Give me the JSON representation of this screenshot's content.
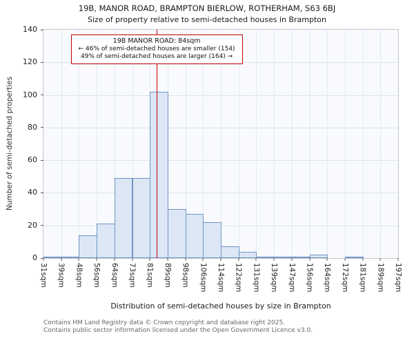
{
  "annotation": {
    "line1": "19B MANOR ROAD: 84sqm",
    "line2": "← 46% of semi-detached houses are smaller (154)",
    "line3": "49% of semi-detached houses are larger (164) →"
  },
  "footer": {
    "line1": "Contains HM Land Registry data © Crown copyright and database right 2025.",
    "line2": "Contains public sector information licensed under the Open Government Licence v3.0."
  },
  "chart_data": {
    "type": "bar",
    "title": "19B, MANOR ROAD, BRAMPTON BIERLOW, ROTHERHAM, S63 6BJ",
    "subtitle": "Size of property relative to semi-detached houses in Brampton",
    "xlabel": "Distribution of semi-detached houses by size in Brampton",
    "ylabel": "Number of semi-detached properties",
    "bin_labels": [
      "31sqm",
      "39sqm",
      "48sqm",
      "56sqm",
      "64sqm",
      "73sqm",
      "81sqm",
      "89sqm",
      "98sqm",
      "106sqm",
      "114sqm",
      "122sqm",
      "131sqm",
      "139sqm",
      "147sqm",
      "156sqm",
      "164sqm",
      "172sqm",
      "181sqm",
      "189sqm",
      "197sqm"
    ],
    "values": [
      1,
      1,
      14,
      21,
      49,
      49,
      102,
      30,
      27,
      22,
      7,
      4,
      1,
      1,
      1,
      2,
      0,
      1,
      0,
      0
    ],
    "ylim": [
      0,
      140
    ],
    "yticks": [
      0,
      20,
      40,
      60,
      80,
      100,
      120,
      140
    ],
    "xrange_sqm": [
      31,
      197
    ],
    "marker_value_sqm": 84,
    "grid": true,
    "legend_position": "none",
    "colors": {
      "bar_fill": "#dce6f5",
      "bar_border": "#6f94c4",
      "marker": "#bb0000",
      "grid": "#dde3ee",
      "plot_background": "#f8fafd"
    }
  }
}
